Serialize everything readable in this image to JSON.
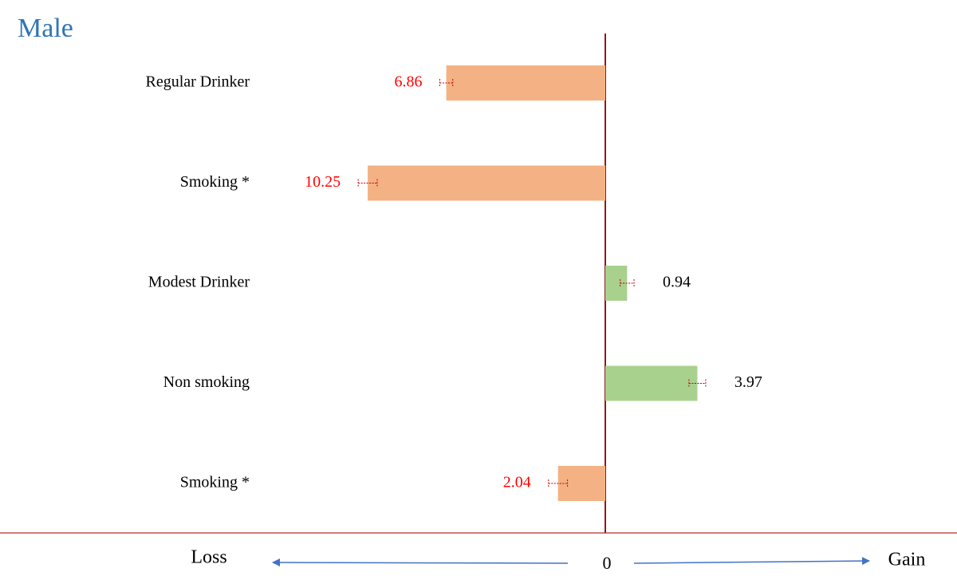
{
  "chart_data": {
    "type": "diverging-bar",
    "title": "Male",
    "categories": [
      "Regular Drinker",
      "Smoking *",
      "Modest Drinker",
      "Non smoking",
      "Smoking *"
    ],
    "values": [
      -6.86,
      -10.25,
      0.94,
      3.97,
      -2.04
    ],
    "value_labels": [
      "6.86",
      "10.25",
      "0.94",
      "3.97",
      "2.04"
    ],
    "errors": [
      0.28,
      0.41,
      0.3,
      0.36,
      0.41
    ],
    "colors": [
      "#f4b183",
      "#f4b183",
      "#a9d18e",
      "#a9d18e",
      "#f4b183"
    ],
    "label_colors": [
      "#ff0000",
      "#ff0000",
      "#000000",
      "#000000",
      "#ff0000"
    ],
    "xlim": [
      -15,
      15
    ],
    "xticks": [
      0
    ],
    "left_label": "Loss",
    "right_label": "Gain"
  }
}
